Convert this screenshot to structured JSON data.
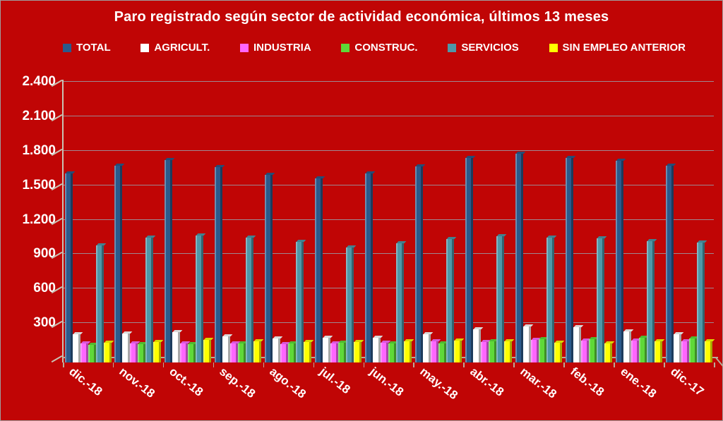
{
  "chart_data": {
    "type": "bar",
    "title": "Paro registrado según sector de actividad económica, últimos 13 meses",
    "categories": [
      "dic.-18",
      "nov.-18",
      "oct.-18",
      "sep.-18",
      "ago.-18",
      "jul.-18",
      "jun.-18",
      "may.-18",
      "abr.-18",
      "mar.-18",
      "feb.-18",
      "ene.-18",
      "dic.-17"
    ],
    "series": [
      {
        "name": "TOTAL",
        "color": "#2A5A8C",
        "values": [
          1600,
          1670,
          1720,
          1655,
          1590,
          1560,
          1600,
          1665,
          1735,
          1775,
          1740,
          1715,
          1670
        ]
      },
      {
        "name": "AGRICULT.",
        "color": "#FFFFFF",
        "values": [
          200,
          210,
          220,
          185,
          165,
          175,
          175,
          200,
          245,
          270,
          265,
          230,
          200
        ]
      },
      {
        "name": "INDUSTRIA",
        "color": "#FF66FF",
        "values": [
          120,
          120,
          125,
          125,
          115,
          120,
          130,
          140,
          135,
          155,
          150,
          150,
          140
        ]
      },
      {
        "name": "CONSTRUC.",
        "color": "#5FD938",
        "values": [
          110,
          118,
          115,
          120,
          120,
          128,
          125,
          125,
          140,
          160,
          160,
          170,
          165
        ]
      },
      {
        "name": "SERVICIOS",
        "color": "#4E98A8",
        "values": [
          975,
          1045,
          1060,
          1045,
          1005,
          960,
          995,
          1030,
          1055,
          1045,
          1040,
          1010,
          1000
        ]
      },
      {
        "name": "SIN EMPLEO ANTERIOR",
        "color": "#FFFF00",
        "values": [
          130,
          135,
          155,
          140,
          135,
          135,
          140,
          145,
          140,
          130,
          125,
          140,
          140
        ]
      }
    ],
    "ylim": [
      0,
      2400
    ],
    "ytick_step": 300,
    "ytick_labels": [
      "300",
      "600",
      "900",
      "1.200",
      "1.500",
      "1.800",
      "2.100",
      "2.400"
    ],
    "grid": true,
    "legend_position": "top",
    "xlabel": "",
    "ylabel": "",
    "colors": {
      "background": "#C00505",
      "text": "#FFFFFF",
      "gridline": "#96A0AA",
      "axis_line": "#C9C2B4",
      "baseline": "#B9AC97"
    }
  }
}
